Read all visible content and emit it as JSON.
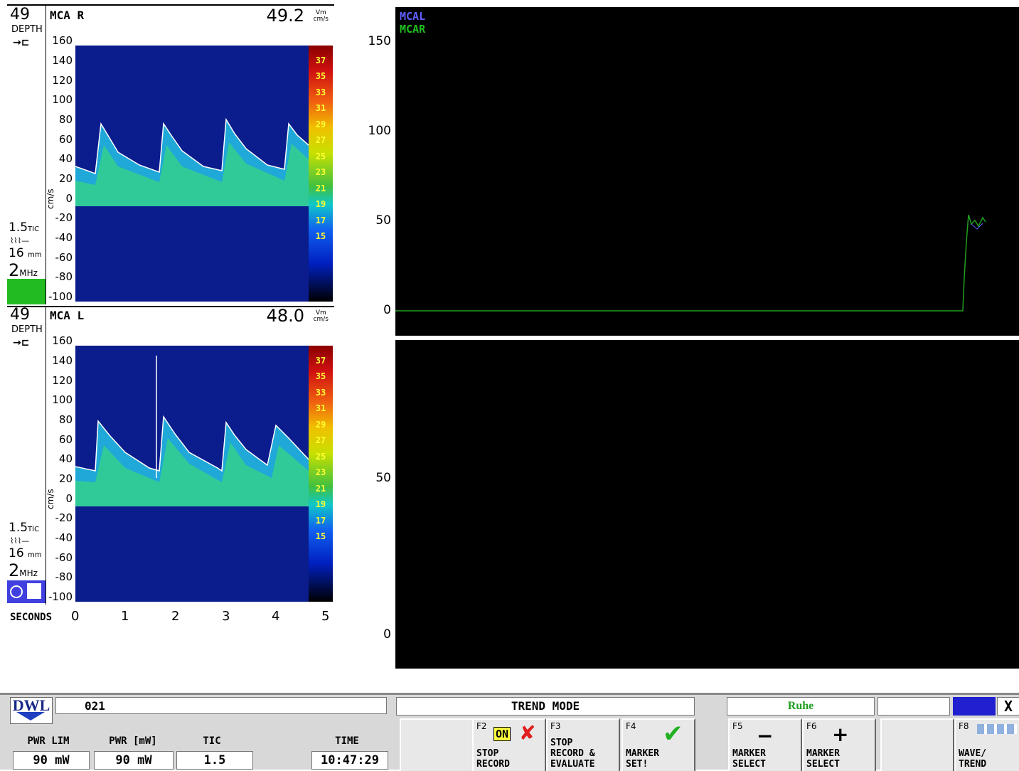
{
  "panels": [
    {
      "depth": "49",
      "depth_label": "DEPTH",
      "vessel": "MCA R",
      "vmean": "49.2",
      "vmean_unit_top": "Vm",
      "vmean_unit_bottom": "cm/s",
      "tic": "1.5",
      "tic_label": "TIC",
      "sample_volume": "16",
      "sample_unit": "mm",
      "freq": "2",
      "freq_unit": "MHz",
      "y_unit": "cm/s",
      "y_ticks": [
        "160",
        "140",
        "120",
        "100",
        "80",
        "60",
        "40",
        "20",
        "0",
        "-20",
        "-40",
        "-60",
        "-80",
        "-100"
      ],
      "status_indicator": "green-block"
    },
    {
      "depth": "49",
      "depth_label": "DEPTH",
      "vessel": "MCA L",
      "vmean": "48.0",
      "vmean_unit_top": "Vm",
      "vmean_unit_bottom": "cm/s",
      "tic": "1.5",
      "tic_label": "TIC",
      "sample_volume": "16",
      "sample_unit": "mm",
      "freq": "2",
      "freq_unit": "MHz",
      "y_unit": "cm/s",
      "y_ticks": [
        "160",
        "140",
        "120",
        "100",
        "80",
        "60",
        "40",
        "20",
        "0",
        "-20",
        "-40",
        "-60",
        "-80",
        "-100"
      ],
      "status_indicator": "probe-icon"
    }
  ],
  "colorbar_ticks": [
    "37",
    "35",
    "33",
    "31",
    "29",
    "27",
    "25",
    "23",
    "21",
    "19",
    "17",
    "15"
  ],
  "time_axis": {
    "label": "SECONDS",
    "ticks": [
      "0",
      "1",
      "2",
      "3",
      "4",
      "5"
    ]
  },
  "trend_top": {
    "legend": [
      {
        "name": "MCAL",
        "color": "#6060ff"
      },
      {
        "name": "MCAR",
        "color": "#20c020"
      }
    ],
    "y_ticks": [
      "150",
      "100",
      "50",
      "0"
    ]
  },
  "trend_bottom": {
    "y_ticks": [
      "50",
      "0"
    ]
  },
  "footer": {
    "logo": "DWL",
    "patient_id": "021",
    "mode": "TREND MODE",
    "state": "Ruhe",
    "close": "X",
    "pwr_lim_label": "PWR LIM",
    "pwr_lim_value": "90 mW",
    "pwr_label": "PWR [mW]",
    "pwr_value": "90 mW",
    "tic_label": "TIC",
    "tic_value": "1.5",
    "time_label": "TIME",
    "time_value": "10:47:29",
    "keys": [
      {
        "fn": "F2",
        "badge": "ON",
        "label1": "STOP",
        "label2": "RECORD"
      },
      {
        "fn": "F3",
        "label1": "STOP",
        "label2": "RECORD &",
        "label3": "EVALUATE"
      },
      {
        "fn": "F4",
        "label1": "MARKER",
        "label2": "SET!"
      },
      {
        "fn": "F5",
        "symbol": "−",
        "label1": "MARKER",
        "label2": "SELECT"
      },
      {
        "fn": "F6",
        "symbol": "+",
        "label1": "MARKER",
        "label2": "SELECT"
      },
      {
        "fn": "F8",
        "label1": "WAVE/",
        "label2": "TREND"
      }
    ]
  },
  "colors": {
    "spectrum_bg": "#0a1a8a",
    "trend_line": "#20a020",
    "state_text": "#20a020"
  }
}
